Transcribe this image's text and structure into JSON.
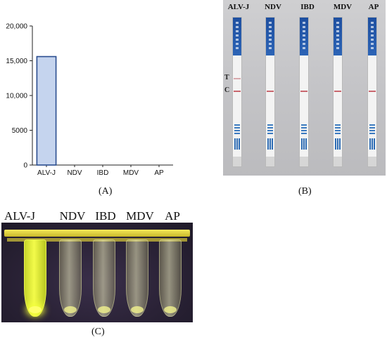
{
  "chart_data": {
    "type": "bar",
    "categories": [
      "ALV-J",
      "NDV",
      "IBD",
      "MDV",
      "AP"
    ],
    "values": [
      15600,
      0,
      0,
      0,
      0
    ],
    "ylim": [
      0,
      20000
    ],
    "yticks": [
      "0",
      "5000",
      "10,000",
      "15,000",
      "20,000"
    ],
    "ytick_values": [
      0,
      5000,
      10000,
      15000,
      20000
    ],
    "grid": false,
    "bar_fill": "#c5d4ee",
    "bar_stroke": "#2a4d8f"
  },
  "captions": {
    "a": "(A)",
    "b": "(B)",
    "c": "(C)"
  },
  "strips": {
    "labels": [
      "ALV-J",
      "NDV",
      "IBD",
      "MDV",
      "AP"
    ],
    "t_label": "T",
    "c_label": "C"
  },
  "tubes": {
    "labels": [
      "ALV-J",
      "NDV",
      "IBD",
      "MDV",
      "AP"
    ]
  },
  "colors": {
    "strip_head": "#1e4fa0",
    "control_line": "#c9676f",
    "fluorescence": "#f3fb4a"
  }
}
